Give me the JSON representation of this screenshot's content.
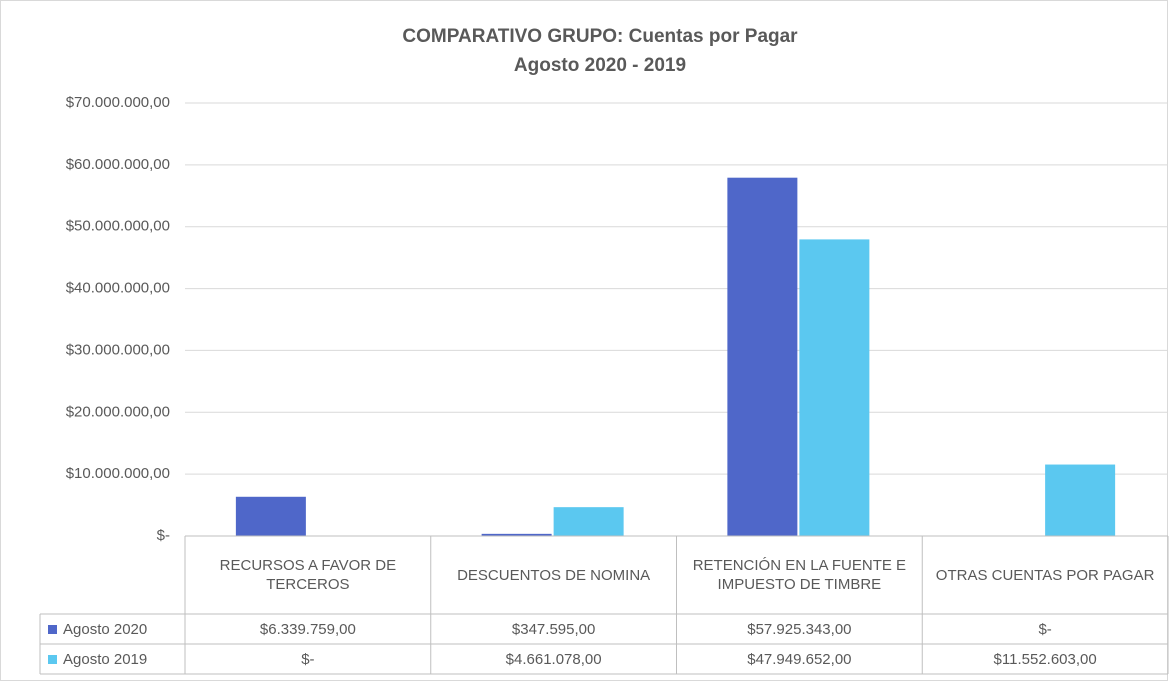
{
  "chart_data": {
    "type": "bar",
    "title": "COMPARATIVO GRUPO: Cuentas por Pagar",
    "subtitle": "Agosto 2020 - 2019",
    "categories": [
      "RECURSOS A FAVOR DE TERCEROS",
      "DESCUENTOS DE NOMINA",
      "RETENCIÓN EN LA FUENTE E IMPUESTO DE TIMBRE",
      "OTRAS CUENTAS POR PAGAR"
    ],
    "series": [
      {
        "name": "Agosto 2020",
        "color": "#4f67c9",
        "values": [
          6339759,
          347595,
          57925343,
          0
        ],
        "value_labels": [
          "$6.339.759,00",
          "$347.595,00",
          "$57.925.343,00",
          "$-"
        ]
      },
      {
        "name": "Agosto 2019",
        "color": "#5bc8f0",
        "values": [
          0,
          4661078,
          47949652,
          11552603
        ],
        "value_labels": [
          "$-",
          "$4.661.078,00",
          "$47.949.652,00",
          "$11.552.603,00"
        ]
      }
    ],
    "ylim": [
      0,
      70000000
    ],
    "yticks": [
      {
        "value": 0,
        "label": "$-"
      },
      {
        "value": 10000000,
        "label": "$10.000.000,00"
      },
      {
        "value": 20000000,
        "label": "$20.000.000,00"
      },
      {
        "value": 30000000,
        "label": "$30.000.000,00"
      },
      {
        "value": 40000000,
        "label": "$40.000.000,00"
      },
      {
        "value": 50000000,
        "label": "$50.000.000,00"
      },
      {
        "value": 60000000,
        "label": "$60.000.000,00"
      },
      {
        "value": 70000000,
        "label": "$70.000.000,00"
      }
    ],
    "grid": true
  }
}
